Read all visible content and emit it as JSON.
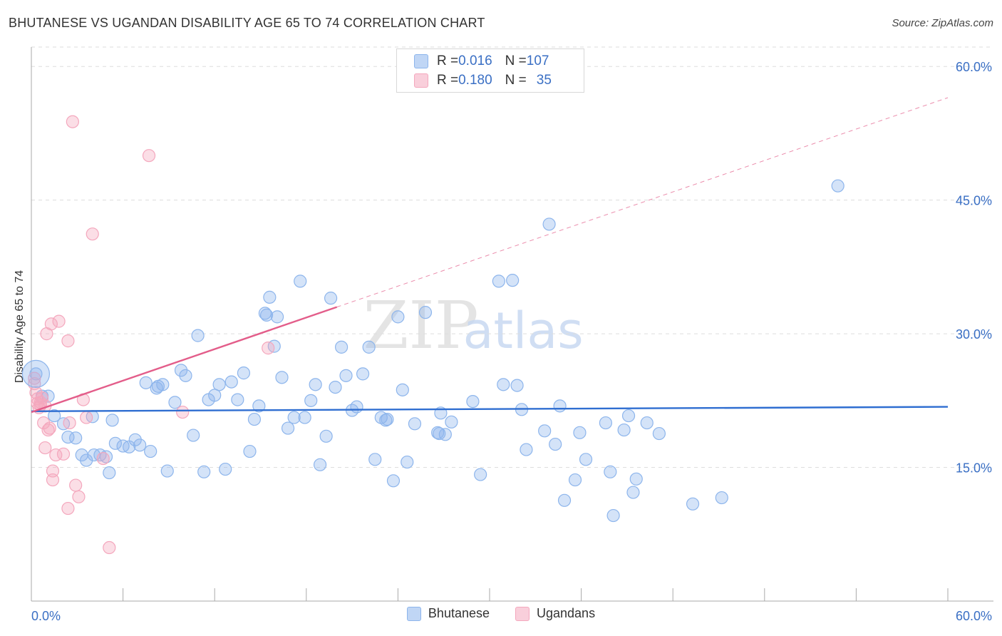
{
  "title": "BHUTANESE VS UGANDAN DISABILITY AGE 65 TO 74 CORRELATION CHART",
  "source": "Source: ZipAtlas.com",
  "watermark": {
    "zip": "ZIP",
    "atlas": "atlas"
  },
  "stats_legend": [
    {
      "r_label": "R = ",
      "r_value": "0.016",
      "n_label": "N = ",
      "n_value": "107",
      "color": "#8db5ec"
    },
    {
      "r_label": "R = ",
      "r_value": "0.180",
      "n_label": "N = ",
      "n_value": "35",
      "color": "#f4a7bd"
    }
  ],
  "colors": {
    "blue": "#8db5ec",
    "blue_line": "#2f6ed1",
    "pink": "#f4a7bd",
    "pink_line": "#e35d8a",
    "tick_text": "#3a6fc4"
  },
  "chart_data": {
    "type": "scatter",
    "title": "BHUTANESE VS UGANDAN DISABILITY AGE 65 TO 74 CORRELATION CHART",
    "xlabel": "",
    "ylabel": "Disability Age 65 to 74",
    "xlim": [
      0,
      60
    ],
    "ylim": [
      0,
      62.5
    ],
    "x_tick_labels": [
      "0.0%",
      "60.0%"
    ],
    "y_ticks": [
      15,
      30,
      45,
      60
    ],
    "y_tick_labels": [
      "15.0%",
      "30.0%",
      "45.0%",
      "60.0%"
    ],
    "grid": true,
    "legend_position": "bottom",
    "series": [
      {
        "name": "Bhutanese",
        "color": "#8db5ec",
        "trend": {
          "x": [
            0,
            60
          ],
          "y": [
            21.3,
            21.8
          ],
          "style": "solid",
          "color": "#2f6ed1"
        },
        "points": [
          [
            0.3,
            25.5
          ],
          [
            0.7,
            23.0
          ],
          [
            1.1,
            23.0
          ],
          [
            1.5,
            20.8
          ],
          [
            2.1,
            19.9
          ],
          [
            2.4,
            18.4
          ],
          [
            2.9,
            18.3
          ],
          [
            3.3,
            16.4
          ],
          [
            3.6,
            15.8
          ],
          [
            4.0,
            20.7
          ],
          [
            4.5,
            16.4
          ],
          [
            4.9,
            16.2
          ],
          [
            5.1,
            14.4
          ],
          [
            5.3,
            20.3
          ],
          [
            5.5,
            17.7
          ],
          [
            6.0,
            17.4
          ],
          [
            6.4,
            17.3
          ],
          [
            6.8,
            18.1
          ],
          [
            7.1,
            17.5
          ],
          [
            7.5,
            24.5
          ],
          [
            7.8,
            16.8
          ],
          [
            8.2,
            23.9
          ],
          [
            8.6,
            24.3
          ],
          [
            8.9,
            14.6
          ],
          [
            9.4,
            22.3
          ],
          [
            9.8,
            25.9
          ],
          [
            10.1,
            25.3
          ],
          [
            10.6,
            18.6
          ],
          [
            10.9,
            29.8
          ],
          [
            11.3,
            14.5
          ],
          [
            11.6,
            22.6
          ],
          [
            12.0,
            23.1
          ],
          [
            12.3,
            24.3
          ],
          [
            12.7,
            14.8
          ],
          [
            13.1,
            24.6
          ],
          [
            13.5,
            22.6
          ],
          [
            13.9,
            25.6
          ],
          [
            14.3,
            16.8
          ],
          [
            14.6,
            20.4
          ],
          [
            14.9,
            21.9
          ],
          [
            15.3,
            32.3
          ],
          [
            15.6,
            34.1
          ],
          [
            15.9,
            28.6
          ],
          [
            16.1,
            31.9
          ],
          [
            16.4,
            25.1
          ],
          [
            16.8,
            19.4
          ],
          [
            17.2,
            20.6
          ],
          [
            17.6,
            35.9
          ],
          [
            17.9,
            20.6
          ],
          [
            18.3,
            22.5
          ],
          [
            18.6,
            24.3
          ],
          [
            18.9,
            15.3
          ],
          [
            19.3,
            18.5
          ],
          [
            19.6,
            34.0
          ],
          [
            19.9,
            24.0
          ],
          [
            20.3,
            28.5
          ],
          [
            20.6,
            25.3
          ],
          [
            21.0,
            21.4
          ],
          [
            21.3,
            21.8
          ],
          [
            21.7,
            25.5
          ],
          [
            22.1,
            28.5
          ],
          [
            22.5,
            15.9
          ],
          [
            22.9,
            20.6
          ],
          [
            23.3,
            20.4
          ],
          [
            23.7,
            13.5
          ],
          [
            24.0,
            31.9
          ],
          [
            24.3,
            23.7
          ],
          [
            24.6,
            15.6
          ],
          [
            25.1,
            19.9
          ],
          [
            25.8,
            32.4
          ],
          [
            26.6,
            18.9
          ],
          [
            27.1,
            18.7
          ],
          [
            26.8,
            21.1
          ],
          [
            27.5,
            20.1
          ],
          [
            28.9,
            22.4
          ],
          [
            29.4,
            14.2
          ],
          [
            30.6,
            35.9
          ],
          [
            31.5,
            36.0
          ],
          [
            30.9,
            24.3
          ],
          [
            31.8,
            24.2
          ],
          [
            32.1,
            21.5
          ],
          [
            32.4,
            17.0
          ],
          [
            33.6,
            19.1
          ],
          [
            33.9,
            42.3
          ],
          [
            34.3,
            17.6
          ],
          [
            34.6,
            21.9
          ],
          [
            34.9,
            11.3
          ],
          [
            35.6,
            13.6
          ],
          [
            35.9,
            18.9
          ],
          [
            36.3,
            15.9
          ],
          [
            37.6,
            20.0
          ],
          [
            37.9,
            14.5
          ],
          [
            38.1,
            9.6
          ],
          [
            38.8,
            19.2
          ],
          [
            39.1,
            20.8
          ],
          [
            39.4,
            12.2
          ],
          [
            39.6,
            13.7
          ],
          [
            40.3,
            20.0
          ],
          [
            41.1,
            18.8
          ],
          [
            43.3,
            10.9
          ],
          [
            45.2,
            11.6
          ],
          [
            52.8,
            46.6
          ],
          [
            4.1,
            16.4
          ],
          [
            8.3,
            24.1
          ],
          [
            15.4,
            32.1
          ],
          [
            26.7,
            18.8
          ],
          [
            23.2,
            20.3
          ]
        ]
      },
      {
        "name": "Ugandans",
        "color": "#f4a7bd",
        "trend": {
          "x": [
            0,
            20
          ],
          "y": [
            21.2,
            33.0
          ],
          "style": "solid",
          "color": "#e35d8a",
          "extension_to": [
            60,
            56.5
          ],
          "extension_style": "dashed"
        },
        "points": [
          [
            0.2,
            25.0
          ],
          [
            0.2,
            24.4
          ],
          [
            0.3,
            23.4
          ],
          [
            0.4,
            22.7
          ],
          [
            0.4,
            22.2
          ],
          [
            0.5,
            21.7
          ],
          [
            0.6,
            22.0
          ],
          [
            0.7,
            22.8
          ],
          [
            0.8,
            20.0
          ],
          [
            0.9,
            17.2
          ],
          [
            1.0,
            30.0
          ],
          [
            1.1,
            19.2
          ],
          [
            1.2,
            19.4
          ],
          [
            1.3,
            31.1
          ],
          [
            1.4,
            14.6
          ],
          [
            1.4,
            13.6
          ],
          [
            1.6,
            16.4
          ],
          [
            1.8,
            31.4
          ],
          [
            2.1,
            16.5
          ],
          [
            2.4,
            29.2
          ],
          [
            2.4,
            10.4
          ],
          [
            2.5,
            20.0
          ],
          [
            2.7,
            53.8
          ],
          [
            2.9,
            13.0
          ],
          [
            3.1,
            11.7
          ],
          [
            3.4,
            22.6
          ],
          [
            3.6,
            20.6
          ],
          [
            4.0,
            41.2
          ],
          [
            4.7,
            16.0
          ],
          [
            5.1,
            6.0
          ],
          [
            7.7,
            50.0
          ],
          [
            9.9,
            21.2
          ],
          [
            15.5,
            28.4
          ],
          [
            0.6,
            22.3
          ],
          [
            0.9,
            21.9
          ]
        ]
      }
    ]
  },
  "bottom_legend": [
    {
      "label": "Bhutanese",
      "color": "#8db5ec"
    },
    {
      "label": "Ugandans",
      "color": "#f4a7bd"
    }
  ]
}
